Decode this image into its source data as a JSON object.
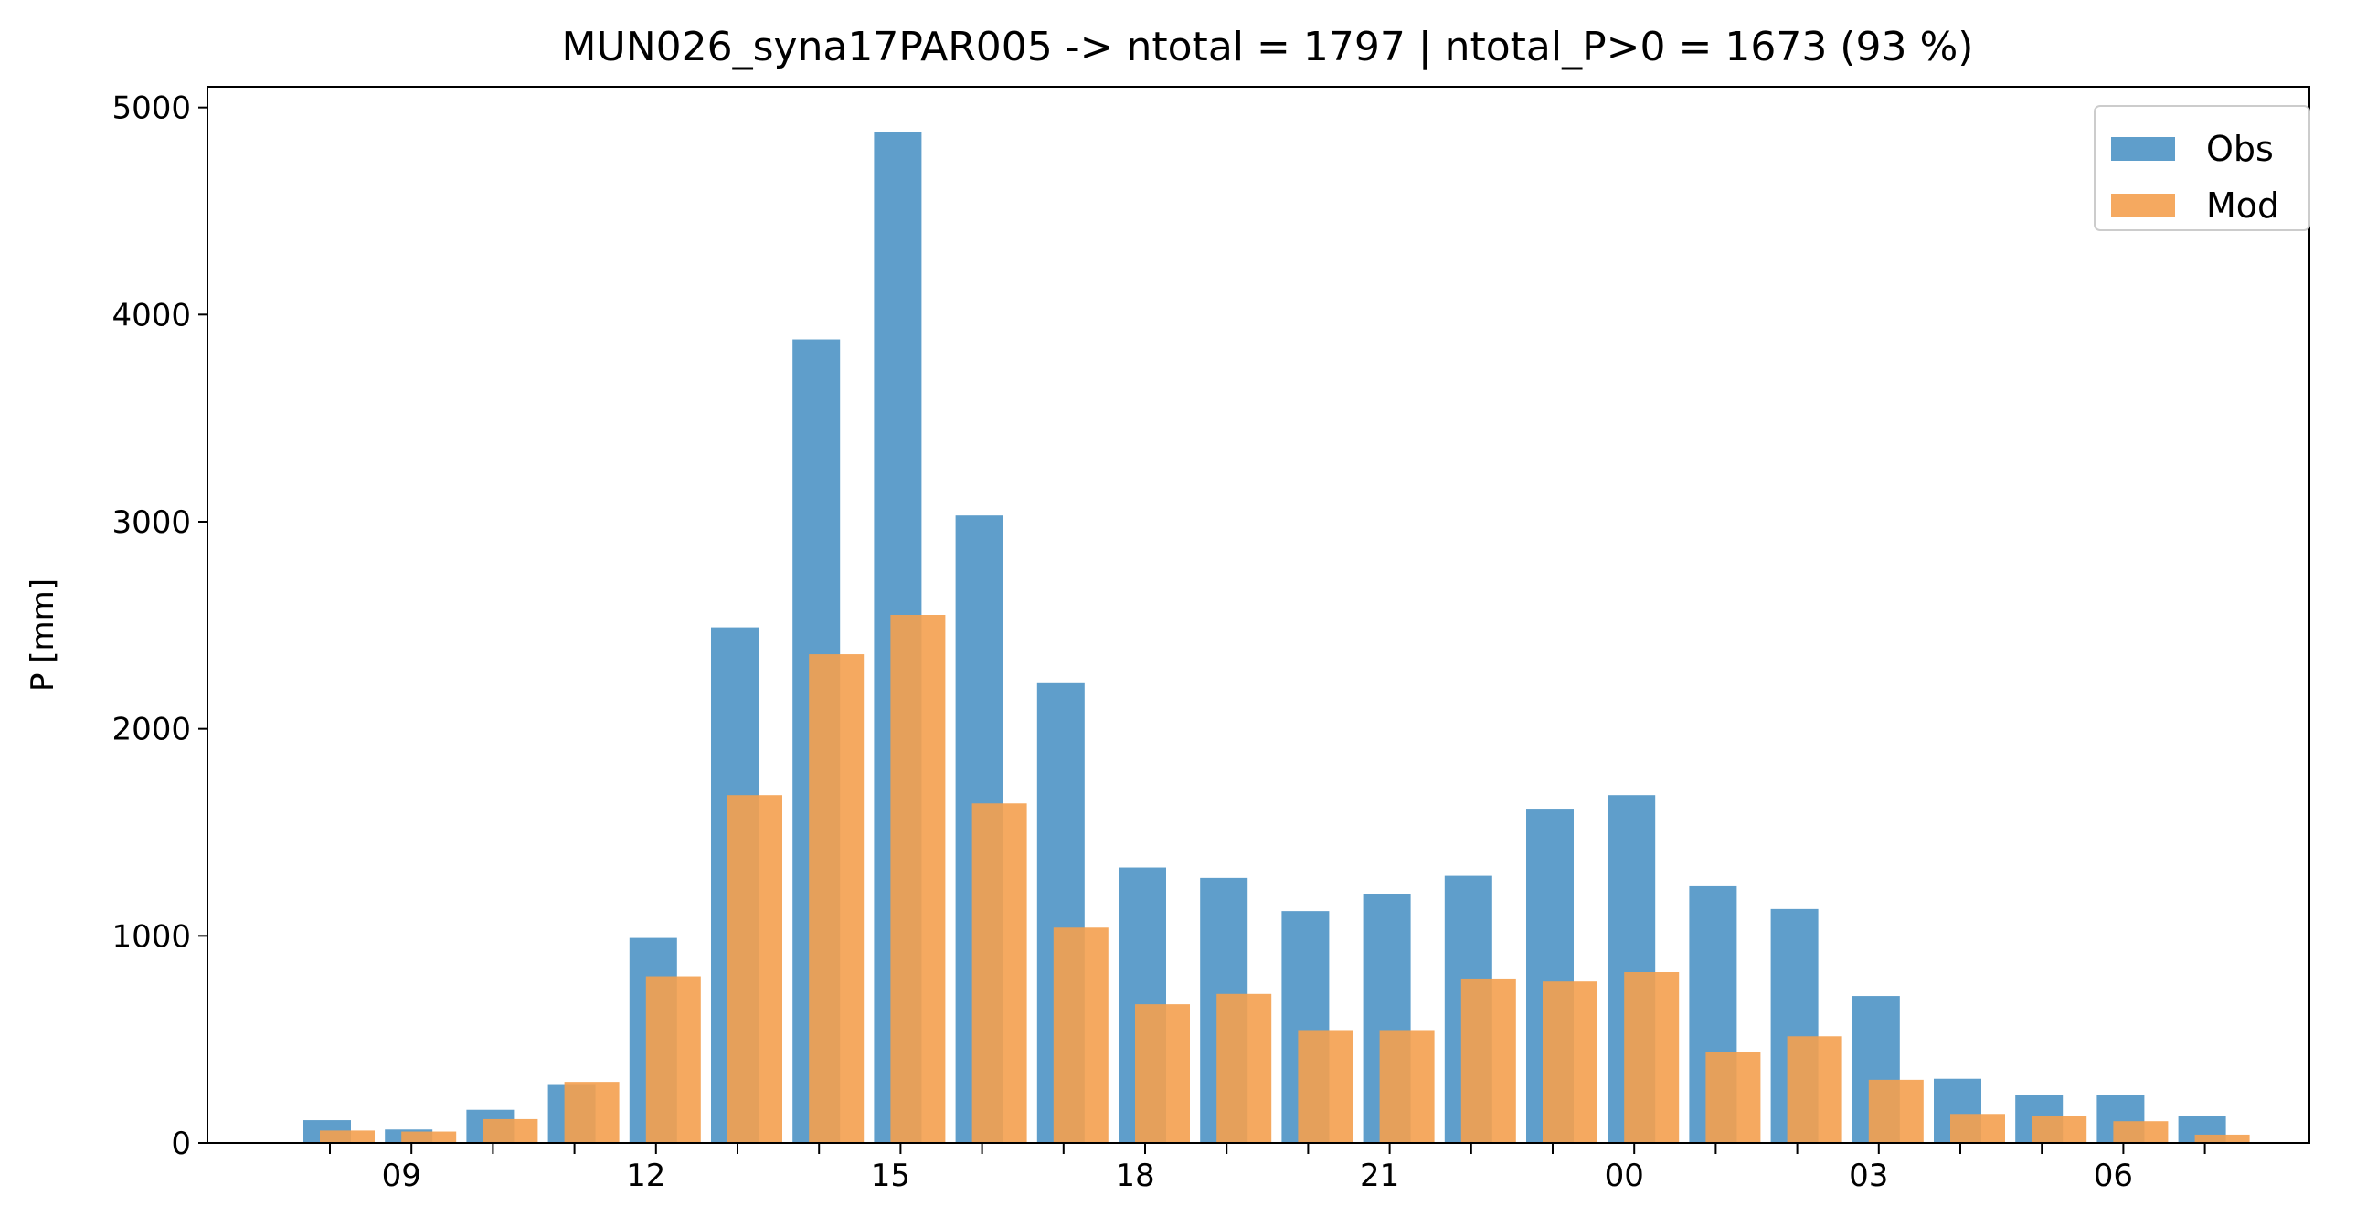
{
  "chart_data": {
    "type": "bar",
    "title": "MUN026_syna17PAR005 -> ntotal = 1797 | ntotal_P>0 = 1673 (93 %)",
    "xlabel": "",
    "ylabel": "P [mm]",
    "ylim": [
      0,
      5100
    ],
    "yticks": [
      0,
      1000,
      2000,
      3000,
      4000,
      5000
    ],
    "x_hours": [
      "08",
      "09",
      "10",
      "11",
      "12",
      "13",
      "14",
      "15",
      "16",
      "17",
      "18",
      "19",
      "20",
      "21",
      "22",
      "23",
      "00",
      "01",
      "02",
      "03",
      "04",
      "05",
      "06",
      "07"
    ],
    "x_tick_labels": [
      "09",
      "12",
      "15",
      "18",
      "21",
      "00",
      "03",
      "06"
    ],
    "legend": {
      "position": "top-right",
      "entries": [
        "Obs",
        "Mod"
      ]
    },
    "series": [
      {
        "name": "Obs",
        "color": "#5f9ecb",
        "values": [
          110,
          65,
          160,
          280,
          990,
          2490,
          3880,
          4880,
          3030,
          2220,
          1330,
          1280,
          1120,
          1200,
          1290,
          1610,
          1680,
          1240,
          1130,
          710,
          310,
          230,
          230,
          130
        ]
      },
      {
        "name": "Mod",
        "color": "#f4a04f",
        "values": [
          60,
          55,
          115,
          295,
          805,
          1680,
          2360,
          2550,
          1640,
          1040,
          670,
          720,
          545,
          545,
          790,
          780,
          825,
          440,
          515,
          305,
          140,
          130,
          105,
          40
        ]
      }
    ],
    "grid": false
  }
}
